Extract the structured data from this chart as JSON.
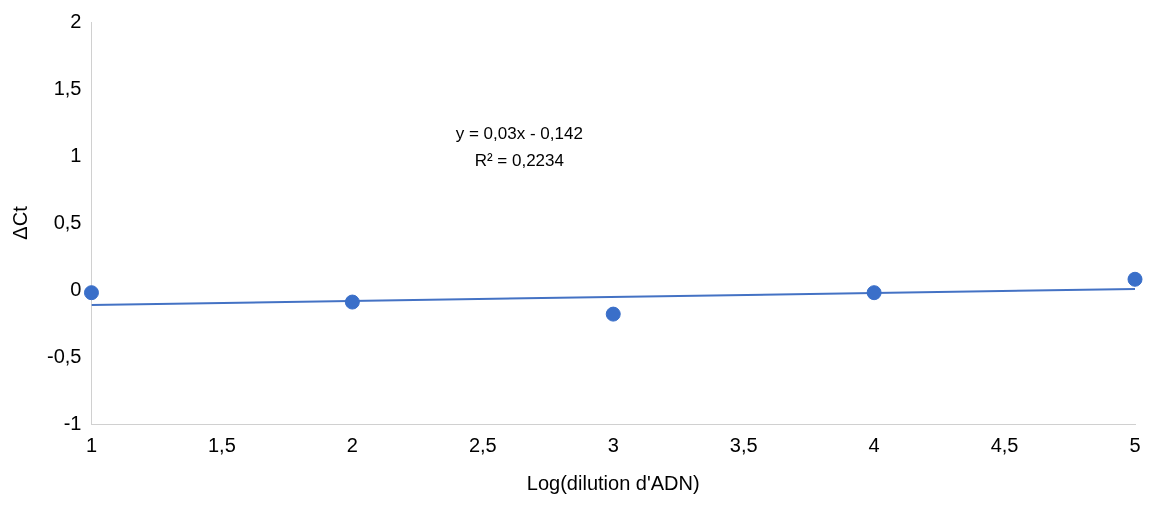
{
  "chart_data": {
    "type": "scatter",
    "xlabel": "Log(dilution d'ADN)",
    "ylabel": "ΔCt",
    "annotations": [
      "y = 0,03x - 0,142",
      "R² = 0,2234"
    ],
    "series": [
      {
        "color": "#3a6fc9",
        "marker": "circle",
        "x": [
          1,
          2,
          3,
          4,
          5
        ],
        "values": [
          -0.02,
          -0.09,
          -0.18,
          -0.02,
          0.08
        ]
      },
      {
        "type": "line",
        "color": "#4472c4",
        "x": [
          1,
          5
        ],
        "values": [
          -0.112,
          0.008
        ]
      }
    ],
    "xlim": [
      1,
      5
    ],
    "xticks": [
      1,
      {
        "value": 1.5,
        "label": "1,5"
      },
      2,
      {
        "value": 2.5,
        "label": "2,5"
      },
      3,
      {
        "value": 3.5,
        "label": "3,5"
      },
      4,
      {
        "value": 4.5,
        "label": "4,5"
      },
      5
    ],
    "ylim": [
      -1,
      2
    ],
    "yticks": [
      -1,
      {
        "value": -0.5,
        "label": "-0,5"
      },
      0,
      {
        "value": 0.5,
        "label": "0,5"
      },
      1,
      {
        "value": 1.5,
        "label": "1,5"
      },
      2
    ],
    "grid": false,
    "legend": false
  }
}
